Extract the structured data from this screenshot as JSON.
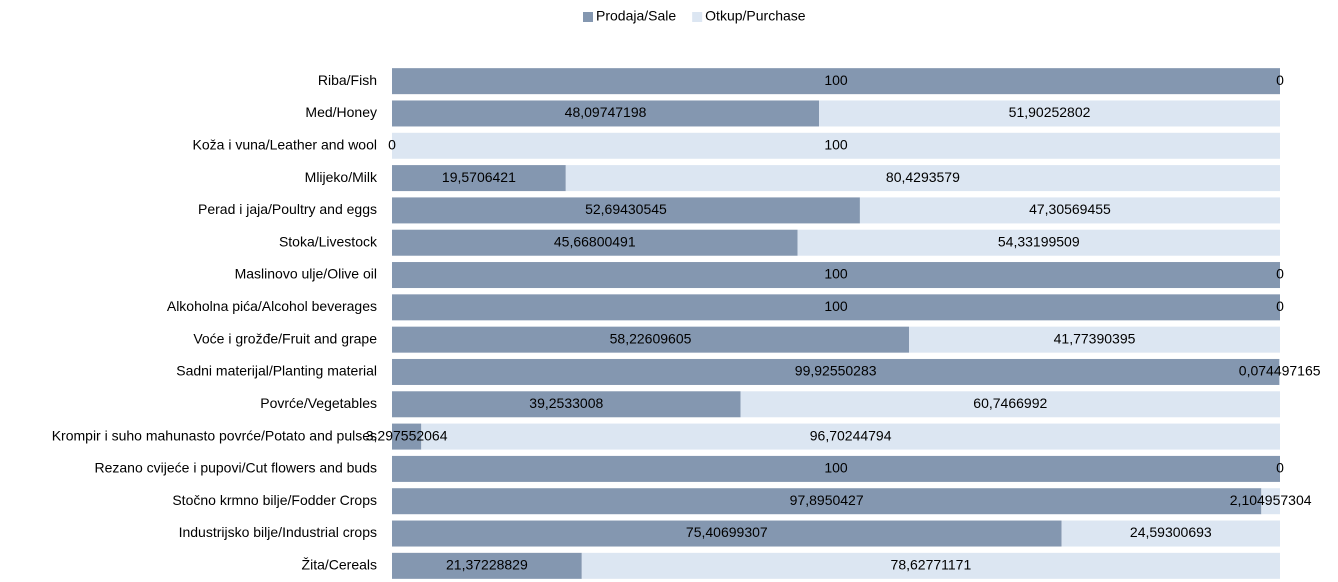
{
  "chart_data": {
    "type": "stacked-bar",
    "orientation": "horizontal",
    "legend": "top",
    "categories": [
      "Riba/Fish",
      "Med/Honey",
      "Koža i vuna/Leather and wool",
      "Mlijeko/Milk",
      "Perad i jaja/Poultry and eggs",
      "Stoka/Livestock",
      "Maslinovo ulje/Olive oil",
      "Alkoholna pića/Alcohol beverages",
      "Voće i grožđe/Fruit and grape",
      "Sadni materijal/Planting material",
      "Povrće/Vegetables",
      "Krompir i suho mahunasto povrće/Potato and pulses",
      "Rezano cvijeće i pupovi/Cut flowers and buds",
      "Stočno krmno bilje/Fodder Crops",
      "Industrijsko bilje/Industrial crops",
      "Žita/Cereals"
    ],
    "xlim": [
      0,
      100
    ],
    "series": [
      {
        "name": "Prodaja/Sale",
        "color": "#8497b0",
        "values": [
          100,
          48.09747198,
          0,
          19.5706421,
          52.69430545,
          45.66800491,
          100,
          100,
          58.22609605,
          99.92550283,
          39.2533008,
          3.297552064,
          100,
          97.8950427,
          75.40699307,
          21.37228829
        ],
        "value_labels": [
          "100",
          "48,09747198",
          "0",
          "19,5706421",
          "52,69430545",
          "45,66800491",
          "100",
          "100",
          "58,22609605",
          "99,92550283",
          "39,2533008",
          "3,297552064",
          "100",
          "97,8950427",
          "75,40699307",
          "21,37228829"
        ]
      },
      {
        "name": "Otkup/Purchase",
        "color": "#dce6f2",
        "values": [
          0,
          51.90252802,
          100,
          80.4293579,
          47.30569455,
          54.33199509,
          0,
          0,
          41.77390395,
          0.074497165,
          60.7466992,
          96.70244794,
          0,
          2.104957304,
          24.59300693,
          78.62771171
        ],
        "value_labels": [
          "0",
          "51,90252802",
          "100",
          "80,4293579",
          "47,30569455",
          "54,33199509",
          "0",
          "0",
          "41,77390395",
          "0,074497165",
          "60,7466992",
          "96,70244794",
          "0",
          "2,104957304",
          "24,59300693",
          "78,62771171"
        ]
      }
    ]
  }
}
